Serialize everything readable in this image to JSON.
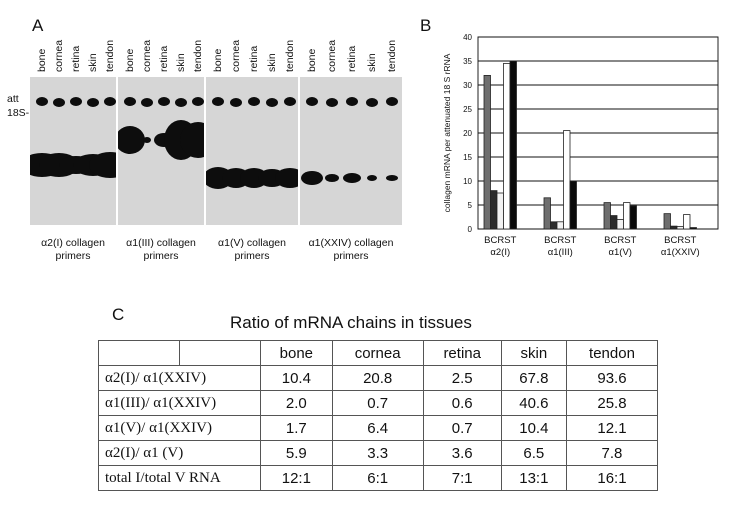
{
  "panel_a": {
    "letter": "A",
    "marker_att": "att",
    "marker_18s": "18S-",
    "groups": [
      {
        "lanes": [
          "bone",
          "cornea",
          "retina",
          "skin",
          "tendon"
        ],
        "caption_line1": "α2(I) collagen",
        "caption_line2": "primers"
      },
      {
        "lanes": [
          "bone",
          "cornea",
          "retina",
          "skin",
          "tendon"
        ],
        "caption_line1": "α1(III) collagen",
        "caption_line2": "primers"
      },
      {
        "lanes": [
          "bone",
          "cornea",
          "retina",
          "skin",
          "tendon"
        ],
        "caption_line1": "α1(V) collagen",
        "caption_line2": "primers"
      },
      {
        "lanes": [
          "bone",
          "cornea",
          "retina",
          "skin",
          "tendon"
        ],
        "caption_line1": "α1(XXIV) collagen",
        "caption_line2": "primers"
      }
    ]
  },
  "panel_b": {
    "letter": "B"
  },
  "panel_c": {
    "letter": "C",
    "title": "Ratio of mRNA chains in tissues",
    "columns": [
      "bone",
      "cornea",
      "retina",
      "skin",
      "tendon"
    ],
    "rows": [
      {
        "label": "α2(I)/ α1(XXIV)",
        "values": [
          "10.4",
          "20.8",
          "2.5",
          "67.8",
          "93.6"
        ]
      },
      {
        "label": "α1(III)/ α1(XXIV)",
        "values": [
          "2.0",
          "0.7",
          "0.6",
          "40.6",
          "25.8"
        ]
      },
      {
        "label": "α1(V)/ α1(XXIV)",
        "values": [
          "1.7",
          "6.4",
          "0.7",
          "10.4",
          "12.1"
        ]
      },
      {
        "label": "α2(I)/ α1 (V)",
        "values": [
          "5.9",
          "3.3",
          "3.6",
          "6.5",
          "7.8"
        ]
      },
      {
        "label": "total I/total V RNA",
        "values": [
          "12:1",
          "6:1",
          "7:1",
          "13:1",
          "16:1"
        ]
      }
    ]
  },
  "chart_data": {
    "type": "bar",
    "ylabel": "collagen mRNA per attenuated 18 S rRNA",
    "ylim": [
      0,
      40
    ],
    "yticks": [
      0,
      5,
      10,
      15,
      20,
      25,
      30,
      35,
      40
    ],
    "grid": true,
    "categories": [
      {
        "line1": "BCRST",
        "line2": "α2(I)"
      },
      {
        "line1": "BCRST",
        "line2": "α1(III)"
      },
      {
        "line1": "BCRST",
        "line2": "α1(V)"
      },
      {
        "line1": "BCRST",
        "line2": "α1(XXIV)"
      }
    ],
    "series": [
      {
        "values": [
          32,
          6.5,
          5.5,
          3.2
        ],
        "color": "#6e6e6e"
      },
      {
        "values": [
          8,
          1.5,
          2.8,
          0.6
        ],
        "color": "#2b2b2b"
      },
      {
        "values": [
          7.5,
          1.5,
          2,
          0.5
        ],
        "color": "#f2f2f2"
      },
      {
        "values": [
          34.5,
          20.5,
          5.5,
          3
        ],
        "color": "#ffffff"
      },
      {
        "values": [
          35,
          10,
          4.8,
          0.3
        ],
        "color": "#0a0a0a"
      }
    ]
  }
}
